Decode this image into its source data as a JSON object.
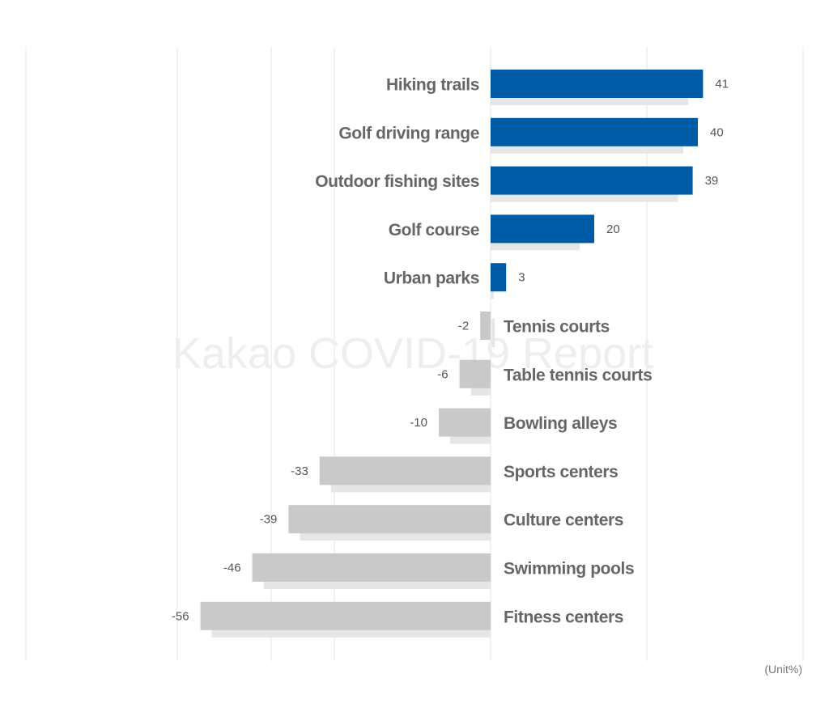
{
  "chart_data": {
    "type": "bar",
    "orientation": "horizontal",
    "categories": [
      "Hiking trails",
      "Golf driving range",
      "Outdoor fishing sites",
      "Golf course",
      "Urban parks",
      "Tennis courts",
      "Table tennis courts",
      "Bowling alleys",
      "Sports centers",
      "Culture centers",
      "Swimming pools",
      "Fitness centers"
    ],
    "values": [
      41,
      40,
      39,
      20,
      3,
      -2,
      -6,
      -10,
      -33,
      -39,
      -46,
      -56
    ],
    "unit_label": "(Unit%)",
    "watermark": "Kakao COVID-19 Report",
    "xlim": [
      -90,
      60
    ],
    "grid": true,
    "colors": {
      "positive": "#005BA6",
      "negative": "#C9C9C9",
      "shadow": "#E6E6E6",
      "grid": "#E4E4E4"
    }
  }
}
